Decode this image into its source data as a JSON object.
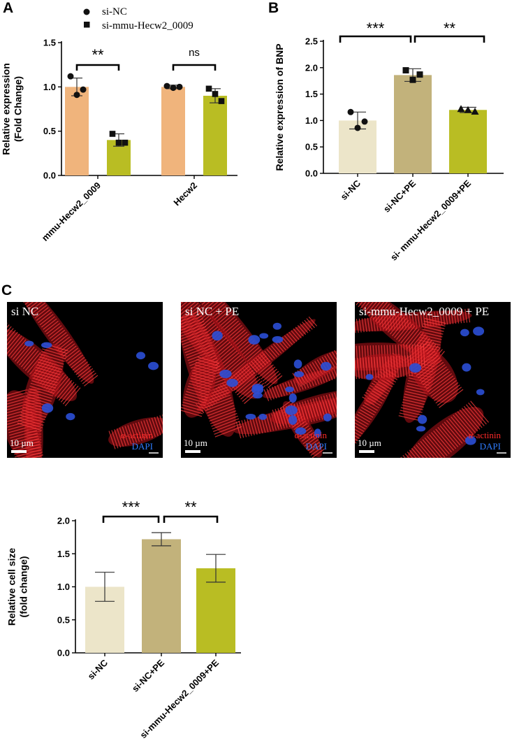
{
  "panels": {
    "a": "A",
    "b": "B",
    "c": "C"
  },
  "microscopy": {
    "stain_red": "α-actinin",
    "stain_blue": "DAPI",
    "scale_label": "10 µm",
    "images": [
      {
        "title": "si NC"
      },
      {
        "title": "si NC + PE"
      },
      {
        "title": "si-mmu-Hecw2_0009 + PE"
      }
    ]
  },
  "chart_data": [
    {
      "id": "A",
      "type": "bar",
      "ylabel": [
        "Relative expression",
        "(Fold Change)"
      ],
      "ylim": [
        0,
        1.5
      ],
      "yticks": [
        "0.0",
        "0.5",
        "1.0",
        "1.5"
      ],
      "categories": [
        "mmu-Hecw2_0009",
        "Hecw2"
      ],
      "legend": {
        "position": "top",
        "entries": [
          "si-NC",
          "si-mmu-Hecw2_0009"
        ]
      },
      "series": [
        {
          "name": "si-NC",
          "values": [
            1.0,
            1.0
          ],
          "errors": [
            0.1,
            0.02
          ],
          "color": "#f0b47c",
          "points": [
            [
              1.12,
              0.91,
              0.97
            ],
            [
              1.01,
              0.99,
              1.0
            ]
          ],
          "marker": "circle"
        },
        {
          "name": "si-mmu-Hecw2_0009",
          "values": [
            0.4,
            0.9
          ],
          "errors": [
            0.07,
            0.08
          ],
          "color": "#b9bd23",
          "points": [
            [
              0.47,
              0.37,
              0.37
            ],
            [
              0.98,
              0.92,
              0.84
            ]
          ],
          "marker": "square"
        }
      ],
      "significance": [
        {
          "category": 0,
          "label": "**"
        },
        {
          "category": 1,
          "label": "ns"
        }
      ]
    },
    {
      "id": "B",
      "type": "bar",
      "ylabel": [
        "Relative expression of BNP"
      ],
      "ylim": [
        0,
        2.5
      ],
      "yticks": [
        "0.0",
        "0.5",
        "1.0",
        "1.5",
        "2.0",
        "2.5"
      ],
      "categories": [
        "si-NC",
        "si-NC+PE",
        "si- mmu-Hecw2_0009+PE"
      ],
      "values": [
        1.0,
        1.86,
        1.2
      ],
      "errors": [
        0.16,
        0.12,
        0.05
      ],
      "colors": [
        "#ece5c9",
        "#c2b27b",
        "#b9bd23"
      ],
      "points": [
        [
          1.16,
          0.86,
          0.98
        ],
        [
          1.95,
          1.77,
          1.87
        ],
        [
          1.22,
          1.2,
          1.17
        ]
      ],
      "markers": [
        "circle",
        "square",
        "triangle"
      ],
      "significance": [
        {
          "from": 0,
          "to": 1,
          "label": "***"
        },
        {
          "from": 1,
          "to": 2,
          "label": "**"
        }
      ]
    },
    {
      "id": "C",
      "type": "bar",
      "ylabel": [
        "Relative cell size",
        "(fold change)"
      ],
      "ylim": [
        0,
        2.0
      ],
      "yticks": [
        "0.0",
        "0.5",
        "1.0",
        "1.5",
        "2.0"
      ],
      "categories": [
        "si-NC",
        "si-NC+PE",
        "si-mmu-Hecw2_0009+PE"
      ],
      "values": [
        1.0,
        1.72,
        1.28
      ],
      "errors": [
        0.22,
        0.1,
        0.21
      ],
      "colors": [
        "#ece5c9",
        "#c2b27b",
        "#b9bd23"
      ],
      "significance": [
        {
          "from": 0,
          "to": 1,
          "label": "***"
        },
        {
          "from": 1,
          "to": 2,
          "label": "**"
        }
      ]
    }
  ]
}
